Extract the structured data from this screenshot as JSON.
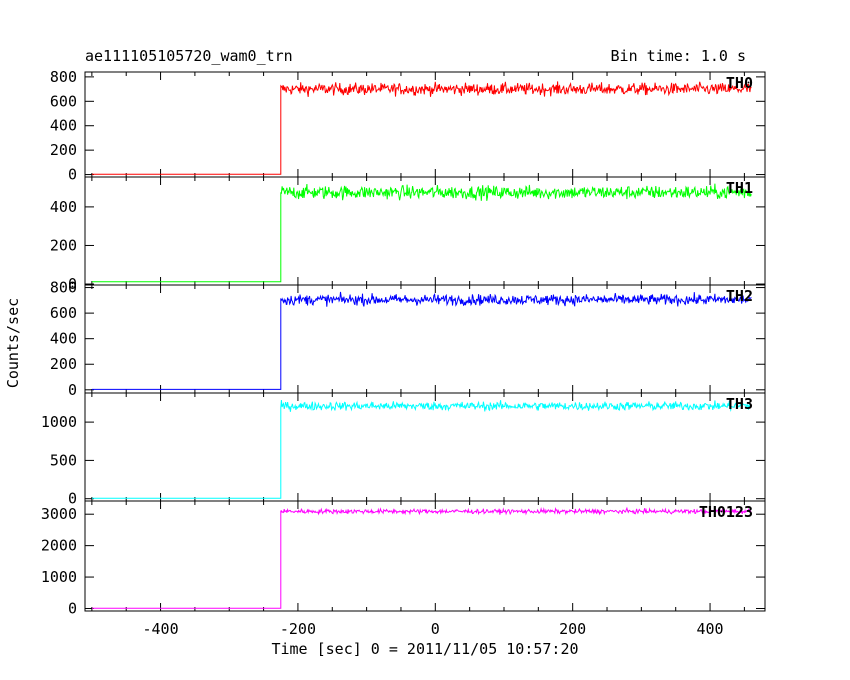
{
  "header": {
    "title": "ae111105105720_wam0_trn",
    "bin_time": "Bin time: 1.0 s"
  },
  "chart_data": [
    {
      "type": "line",
      "series": [
        {
          "name": "TH0",
          "color": "#ff0000",
          "pre_level": 2,
          "post_level": 700,
          "noise": 35
        }
      ],
      "ylim": [
        -20,
        840
      ],
      "yticks": [
        0,
        200,
        400,
        600,
        800
      ],
      "xlim": [
        -510,
        480
      ],
      "step_x": -225
    },
    {
      "type": "line",
      "series": [
        {
          "name": "TH1",
          "color": "#00ff00",
          "pre_level": 12,
          "post_level": 475,
          "noise": 25
        }
      ],
      "ylim": [
        -5,
        555
      ],
      "yticks": [
        0,
        200,
        400
      ],
      "xlim": [
        -510,
        480
      ],
      "step_x": -225
    },
    {
      "type": "line",
      "series": [
        {
          "name": "TH2",
          "color": "#0000ff",
          "pre_level": 3,
          "post_level": 705,
          "noise": 30
        }
      ],
      "ylim": [
        -25,
        820
      ],
      "yticks": [
        0,
        200,
        400,
        600,
        800
      ],
      "xlim": [
        -510,
        480
      ],
      "step_x": -225
    },
    {
      "type": "line",
      "series": [
        {
          "name": "TH3",
          "color": "#00ffff",
          "pre_level": 5,
          "post_level": 1210,
          "noise": 40
        }
      ],
      "ylim": [
        -30,
        1380
      ],
      "yticks": [
        0,
        500,
        1000
      ],
      "xlim": [
        -510,
        480
      ],
      "step_x": -225
    },
    {
      "type": "line",
      "series": [
        {
          "name": "TH0123",
          "color": "#ff00ff",
          "pre_level": 10,
          "post_level": 3090,
          "noise": 50
        }
      ],
      "ylim": [
        -80,
        3420
      ],
      "yticks": [
        0,
        1000,
        2000,
        3000
      ],
      "xlim": [
        -510,
        480
      ],
      "step_x": -225
    }
  ],
  "axes": {
    "ylabel": "Counts/sec",
    "xlabel": "Time [sec] 0 = 2011/11/05 10:57:20",
    "xticks": [
      -400,
      -200,
      0,
      200,
      400
    ]
  }
}
